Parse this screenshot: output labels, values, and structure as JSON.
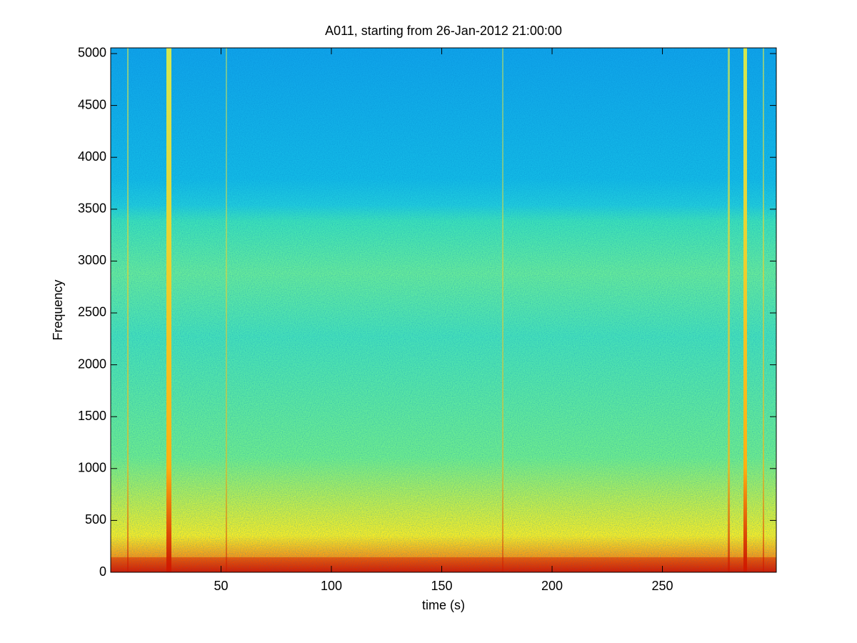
{
  "chart_data": {
    "type": "spectrogram",
    "title": "A011, starting from 26-Jan-2012 21:00:00",
    "x_label": "time (s)",
    "y_label": "Frequency",
    "xlim": [
      0,
      301.6
    ],
    "xticks": [
      50,
      100,
      150,
      200,
      250
    ],
    "ylim": [
      0,
      5055
    ],
    "yticks": [
      0,
      500,
      1000,
      1500,
      2000,
      2500,
      3000,
      3500,
      4000,
      4500,
      5000
    ],
    "colormap": "jet"
  }
}
